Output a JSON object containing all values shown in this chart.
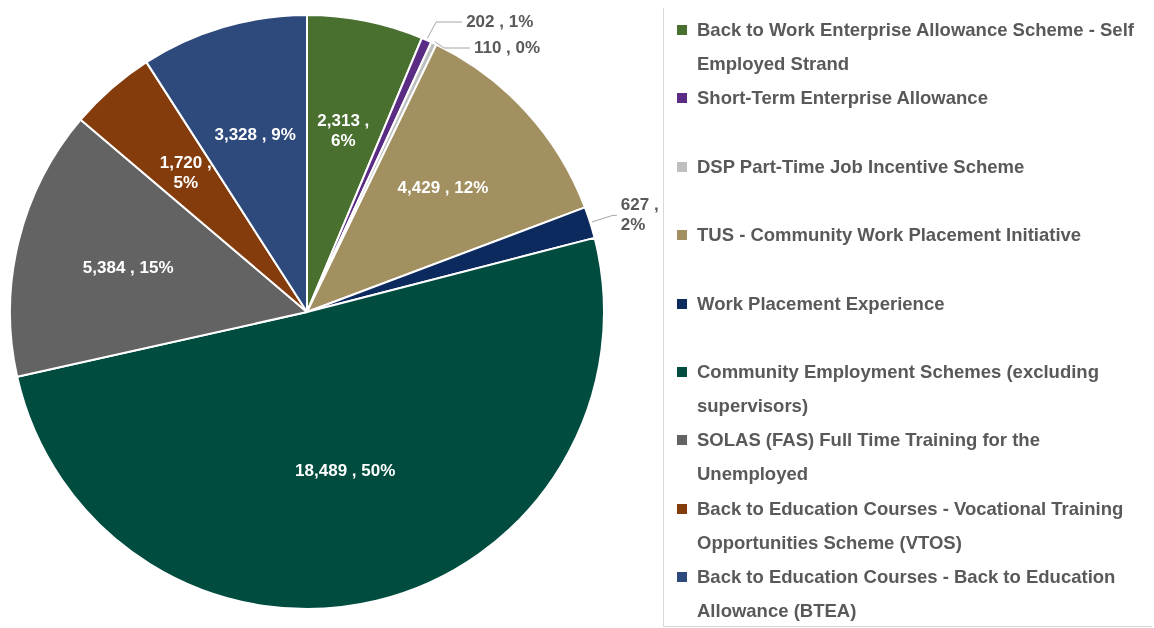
{
  "chart_data": {
    "type": "pie",
    "legend": "right",
    "categories": [
      "Back to Work Enterprise Allowance Scheme - Self Employed Strand",
      "Short-Term Enterprise Allowance",
      "DSP Part-Time Job Incentive Scheme",
      "TUS - Community Work Placement Initiative",
      "Work Placement Experience",
      "Community Employment Schemes (excluding supervisors)",
      "SOLAS (FAS) Full Time Training for the Unemployed",
      "Back to Education Courses - Vocational Training Opportunities Scheme (VTOS)",
      "Back to Education Courses - Back to Education Allowance (BTEA)"
    ],
    "values": [
      2313,
      202,
      110,
      4429,
      627,
      18489,
      5384,
      1720,
      3328
    ],
    "colors": [
      "#4a7030",
      "#5b2c83",
      "#bfbfbf",
      "#a39060",
      "#0d2a5e",
      "#004d40",
      "#636363",
      "#843c0c",
      "#2e4a7d"
    ],
    "value_labels": [
      "2,313 , 6%",
      "202 , 1%",
      "110 , 0%",
      "4,429 , 12%",
      "627 , 2%",
      "18,489 , 50%",
      "5,384 , 15%",
      "1,720 , 5%",
      "3,328 , 9%"
    ]
  }
}
